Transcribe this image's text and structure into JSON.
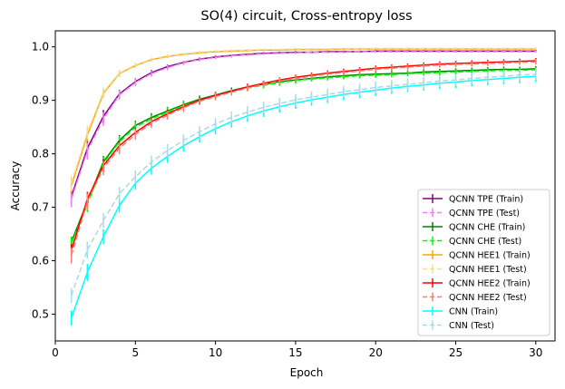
{
  "chart_data": {
    "type": "line",
    "title": "SO(4) circuit, Cross-entropy loss",
    "xlabel": "Epoch",
    "ylabel": "Accuracy",
    "xlim": [
      0,
      31.2
    ],
    "ylim": [
      0.45,
      1.03
    ],
    "xticks": [
      0,
      5,
      10,
      15,
      20,
      25,
      30
    ],
    "yticks": [
      0.5,
      0.6,
      0.7,
      0.8,
      0.9,
      1.0
    ],
    "xtick_labels": [
      "0",
      "5",
      "10",
      "15",
      "20",
      "25",
      "30"
    ],
    "ytick_labels": [
      "0.5",
      "0.6",
      "0.7",
      "0.8",
      "0.9",
      "1.0"
    ],
    "legend_position": "lower right",
    "x": [
      1,
      2,
      3,
      4,
      5,
      6,
      7,
      8,
      9,
      10,
      11,
      12,
      13,
      14,
      15,
      16,
      17,
      18,
      19,
      20,
      21,
      22,
      23,
      24,
      25,
      26,
      27,
      28,
      29,
      30
    ],
    "series": [
      {
        "name": "QCNN TPE (Train)",
        "color": "#800080",
        "style": "solid",
        "values": [
          0.72,
          0.81,
          0.87,
          0.912,
          0.935,
          0.952,
          0.963,
          0.971,
          0.977,
          0.981,
          0.984,
          0.986,
          0.988,
          0.989,
          0.99,
          0.99,
          0.991,
          0.991,
          0.991,
          0.992,
          0.992,
          0.992,
          0.992,
          0.992,
          0.992,
          0.992,
          0.992,
          0.992,
          0.992,
          0.992
        ],
        "err": [
          0.012,
          0.014,
          0.012,
          0.008,
          0.006,
          0.005,
          0.004,
          0.003,
          0.003,
          0.003,
          0.002,
          0.002,
          0.002,
          0.002,
          0.002,
          0.002,
          0.002,
          0.002,
          0.002,
          0.002,
          0.002,
          0.002,
          0.002,
          0.002,
          0.002,
          0.002,
          0.002,
          0.002,
          0.002,
          0.002
        ]
      },
      {
        "name": "QCNN TPE (Test)",
        "color": "#ee82ee",
        "style": "dashed",
        "values": [
          0.715,
          0.805,
          0.865,
          0.91,
          0.933,
          0.95,
          0.961,
          0.97,
          0.976,
          0.98,
          0.983,
          0.985,
          0.987,
          0.988,
          0.989,
          0.99,
          0.99,
          0.99,
          0.991,
          0.991,
          0.991,
          0.991,
          0.991,
          0.991,
          0.991,
          0.991,
          0.991,
          0.991,
          0.991,
          0.991
        ],
        "err": [
          0.015,
          0.016,
          0.013,
          0.009,
          0.007,
          0.006,
          0.005,
          0.004,
          0.003,
          0.003,
          0.003,
          0.002,
          0.002,
          0.002,
          0.002,
          0.002,
          0.002,
          0.002,
          0.002,
          0.002,
          0.002,
          0.002,
          0.002,
          0.002,
          0.002,
          0.002,
          0.002,
          0.002,
          0.002,
          0.002
        ]
      },
      {
        "name": "QCNN CHE (Train)",
        "color": "#008000",
        "style": "solid",
        "values": [
          0.635,
          0.71,
          0.785,
          0.825,
          0.853,
          0.868,
          0.88,
          0.892,
          0.902,
          0.91,
          0.918,
          0.925,
          0.93,
          0.935,
          0.938,
          0.941,
          0.944,
          0.946,
          0.948,
          0.949,
          0.95,
          0.951,
          0.953,
          0.954,
          0.955,
          0.956,
          0.957,
          0.958,
          0.958,
          0.959
        ],
        "err": [
          0.01,
          0.012,
          0.011,
          0.01,
          0.009,
          0.008,
          0.008,
          0.007,
          0.007,
          0.006,
          0.006,
          0.006,
          0.005,
          0.005,
          0.005,
          0.005,
          0.005,
          0.005,
          0.005,
          0.005,
          0.005,
          0.005,
          0.005,
          0.005,
          0.005,
          0.005,
          0.005,
          0.005,
          0.005,
          0.005
        ]
      },
      {
        "name": "QCNN CHE (Test)",
        "color": "#00ff00",
        "style": "dashed",
        "values": [
          0.632,
          0.705,
          0.782,
          0.822,
          0.85,
          0.865,
          0.878,
          0.89,
          0.9,
          0.908,
          0.916,
          0.923,
          0.928,
          0.933,
          0.937,
          0.94,
          0.942,
          0.944,
          0.946,
          0.947,
          0.948,
          0.95,
          0.951,
          0.952,
          0.953,
          0.954,
          0.955,
          0.956,
          0.956,
          0.957
        ],
        "err": [
          0.012,
          0.014,
          0.012,
          0.011,
          0.01,
          0.009,
          0.009,
          0.008,
          0.008,
          0.007,
          0.007,
          0.006,
          0.006,
          0.006,
          0.006,
          0.005,
          0.005,
          0.005,
          0.005,
          0.005,
          0.005,
          0.005,
          0.005,
          0.005,
          0.005,
          0.005,
          0.005,
          0.005,
          0.005,
          0.005
        ]
      },
      {
        "name": "QCNN HEE1 (Train)",
        "color": "#ffa500",
        "style": "solid",
        "values": [
          0.74,
          0.835,
          0.913,
          0.95,
          0.965,
          0.976,
          0.982,
          0.986,
          0.989,
          0.991,
          0.992,
          0.993,
          0.994,
          0.994,
          0.995,
          0.995,
          0.995,
          0.996,
          0.996,
          0.996,
          0.996,
          0.996,
          0.996,
          0.996,
          0.996,
          0.996,
          0.996,
          0.996,
          0.996,
          0.996
        ],
        "err": [
          0.012,
          0.012,
          0.008,
          0.006,
          0.004,
          0.003,
          0.003,
          0.002,
          0.002,
          0.002,
          0.002,
          0.002,
          0.002,
          0.002,
          0.002,
          0.002,
          0.002,
          0.002,
          0.002,
          0.002,
          0.002,
          0.002,
          0.002,
          0.002,
          0.002,
          0.002,
          0.002,
          0.002,
          0.002,
          0.002
        ]
      },
      {
        "name": "QCNN HEE1 (Test)",
        "color": "#eedd99",
        "style": "dashed",
        "values": [
          0.745,
          0.84,
          0.915,
          0.951,
          0.966,
          0.977,
          0.983,
          0.987,
          0.99,
          0.992,
          0.993,
          0.994,
          0.995,
          0.995,
          0.996,
          0.996,
          0.996,
          0.997,
          0.997,
          0.997,
          0.997,
          0.997,
          0.997,
          0.997,
          0.997,
          0.997,
          0.997,
          0.997,
          0.997,
          0.997
        ],
        "err": [
          0.014,
          0.013,
          0.009,
          0.006,
          0.004,
          0.003,
          0.003,
          0.002,
          0.002,
          0.002,
          0.002,
          0.002,
          0.002,
          0.002,
          0.002,
          0.002,
          0.002,
          0.002,
          0.002,
          0.002,
          0.002,
          0.002,
          0.002,
          0.002,
          0.002,
          0.002,
          0.002,
          0.002,
          0.002,
          0.002
        ]
      },
      {
        "name": "QCNN HEE2 (Train)",
        "color": "#ff0000",
        "style": "solid",
        "values": [
          0.62,
          0.715,
          0.778,
          0.815,
          0.84,
          0.86,
          0.875,
          0.888,
          0.9,
          0.909,
          0.917,
          0.925,
          0.932,
          0.938,
          0.943,
          0.947,
          0.951,
          0.954,
          0.957,
          0.96,
          0.962,
          0.964,
          0.966,
          0.968,
          0.969,
          0.97,
          0.971,
          0.972,
          0.973,
          0.974
        ],
        "err": [
          0.012,
          0.014,
          0.012,
          0.01,
          0.009,
          0.008,
          0.008,
          0.007,
          0.007,
          0.006,
          0.006,
          0.006,
          0.005,
          0.005,
          0.005,
          0.005,
          0.005,
          0.005,
          0.005,
          0.005,
          0.005,
          0.005,
          0.005,
          0.005,
          0.005,
          0.005,
          0.005,
          0.005,
          0.005,
          0.005
        ]
      },
      {
        "name": "QCNN HEE2 (Test)",
        "color": "#fa8072",
        "style": "dashed",
        "values": [
          0.61,
          0.71,
          0.773,
          0.81,
          0.836,
          0.857,
          0.872,
          0.886,
          0.898,
          0.907,
          0.915,
          0.923,
          0.93,
          0.936,
          0.941,
          0.945,
          0.949,
          0.952,
          0.955,
          0.958,
          0.96,
          0.962,
          0.964,
          0.966,
          0.967,
          0.968,
          0.969,
          0.97,
          0.971,
          0.972
        ],
        "err": [
          0.015,
          0.016,
          0.013,
          0.011,
          0.01,
          0.009,
          0.008,
          0.008,
          0.007,
          0.007,
          0.006,
          0.006,
          0.006,
          0.006,
          0.005,
          0.005,
          0.005,
          0.005,
          0.005,
          0.005,
          0.005,
          0.005,
          0.005,
          0.005,
          0.005,
          0.005,
          0.005,
          0.005,
          0.005,
          0.005
        ]
      },
      {
        "name": "CNN (Train)",
        "color": "#00ffff",
        "style": "solid",
        "values": [
          0.493,
          0.578,
          0.645,
          0.703,
          0.745,
          0.773,
          0.795,
          0.815,
          0.832,
          0.847,
          0.86,
          0.871,
          0.88,
          0.888,
          0.895,
          0.901,
          0.906,
          0.911,
          0.915,
          0.919,
          0.923,
          0.926,
          0.929,
          0.932,
          0.934,
          0.937,
          0.939,
          0.941,
          0.943,
          0.945
        ],
        "err": [
          0.014,
          0.016,
          0.014,
          0.013,
          0.012,
          0.012,
          0.012,
          0.011,
          0.011,
          0.011,
          0.011,
          0.011,
          0.011,
          0.011,
          0.011,
          0.011,
          0.011,
          0.011,
          0.011,
          0.011,
          0.011,
          0.011,
          0.011,
          0.011,
          0.011,
          0.011,
          0.011,
          0.011,
          0.011,
          0.011
        ]
      },
      {
        "name": "CNN (Test)",
        "color": "#add8e6",
        "style": "dashed",
        "values": [
          0.535,
          0.62,
          0.675,
          0.725,
          0.757,
          0.785,
          0.806,
          0.825,
          0.841,
          0.856,
          0.868,
          0.878,
          0.887,
          0.894,
          0.901,
          0.906,
          0.911,
          0.916,
          0.92,
          0.924,
          0.927,
          0.93,
          0.933,
          0.936,
          0.938,
          0.941,
          0.943,
          0.945,
          0.947,
          0.949
        ],
        "err": [
          0.014,
          0.016,
          0.014,
          0.013,
          0.012,
          0.012,
          0.012,
          0.011,
          0.011,
          0.011,
          0.011,
          0.011,
          0.011,
          0.011,
          0.011,
          0.011,
          0.011,
          0.011,
          0.011,
          0.011,
          0.011,
          0.011,
          0.011,
          0.011,
          0.011,
          0.011,
          0.011,
          0.011,
          0.011,
          0.011
        ]
      }
    ]
  }
}
